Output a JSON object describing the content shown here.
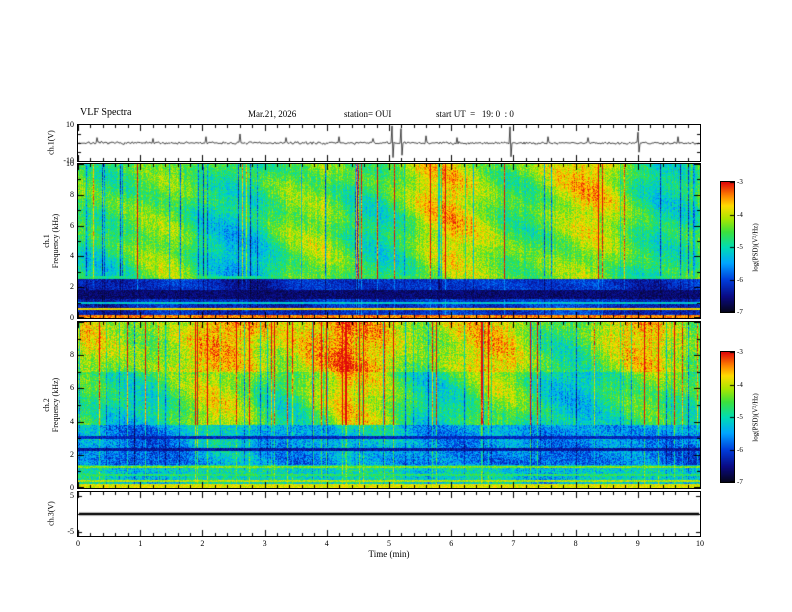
{
  "header": {
    "title": "VLF Spectra",
    "date": "Mar.21, 2026",
    "station": "station= OUI",
    "start_ut": "start UT  =   19: 0  : 0"
  },
  "axes": {
    "time_label": "Time (min)",
    "time_ticks": [
      0,
      1,
      2,
      3,
      4,
      5,
      6,
      7,
      8,
      9,
      10
    ],
    "time_range_min": [
      0,
      10
    ]
  },
  "colorbar": {
    "label": "log(PSD)(V²/Hz)",
    "ticks": [
      -3,
      -4,
      -5,
      -6,
      -7
    ],
    "range": [
      -7,
      -3
    ],
    "colormap": [
      {
        "t": 0.0,
        "rgb": [
          5,
          5,
          25
        ]
      },
      {
        "t": 0.12,
        "rgb": [
          10,
          10,
          130
        ]
      },
      {
        "t": 0.25,
        "rgb": [
          0,
          60,
          220
        ]
      },
      {
        "t": 0.38,
        "rgb": [
          0,
          165,
          255
        ]
      },
      {
        "t": 0.5,
        "rgb": [
          0,
          220,
          180
        ]
      },
      {
        "t": 0.62,
        "rgb": [
          60,
          225,
          60
        ]
      },
      {
        "t": 0.72,
        "rgb": [
          170,
          230,
          0
        ]
      },
      {
        "t": 0.82,
        "rgb": [
          255,
          220,
          0
        ]
      },
      {
        "t": 0.9,
        "rgb": [
          255,
          130,
          0
        ]
      },
      {
        "t": 1.0,
        "rgb": [
          225,
          10,
          10
        ]
      }
    ]
  },
  "chart_data": [
    {
      "type": "line",
      "name": "ch1-waveform",
      "ylabel": "ch.1(V)",
      "ylim": [
        -10,
        10
      ],
      "yticks": [
        10,
        -10
      ],
      "description": "Broadband noise of roughly ±1 V around 0 V with many impulsive spikes over the 10-minute record",
      "seed": 7,
      "noise_amplitude_v": 0.7,
      "spikes": {
        "times_min": [
          0.3,
          1.2,
          2.05,
          2.6,
          3.35,
          4.2,
          4.75,
          5.05,
          5.2,
          5.6,
          6.1,
          6.95,
          7.55,
          8.2,
          9.0,
          9.65
        ],
        "amplitudes_v": [
          3,
          2.5,
          3.5,
          5,
          3,
          3.5,
          2.5,
          9.5,
          8,
          4,
          3,
          9,
          3.5,
          3,
          6,
          3.5
        ]
      },
      "line_color": "#000000"
    },
    {
      "type": "heatmap",
      "name": "ch1-spectrogram",
      "ylabel": "ch.1\nFrequency (kHz)",
      "ylim_khz": [
        0,
        10
      ],
      "yticks": [
        10,
        8,
        6,
        4,
        2,
        0
      ],
      "value_range": [
        -7,
        -3
      ],
      "description": "Green/yellow broadband hiss 2.5-10 kHz with red vertical sferic streaks; dark blue band below 2.5 kHz with bright red lines near 0.1 and 0.6 kHz",
      "seed": 42,
      "bands": [
        {
          "f_lo": 2.55,
          "f_hi": 10,
          "base": -4.6,
          "tilt": 0.25,
          "streak_w": 1.0,
          "noise": 0.38,
          "blob": 1.0
        },
        {
          "f_lo": 0,
          "f_hi": 2.55,
          "base": -6.15,
          "tilt": 0,
          "streak_w": 0.3,
          "noise": 0.3,
          "blob": 0.5
        }
      ],
      "lines": [
        {
          "f": 2.62,
          "hw": 0.08,
          "v": -4.9,
          "mode": "bright"
        },
        {
          "f": 1.55,
          "hw": 0.3,
          "v": -6.6,
          "mode": "dark"
        },
        {
          "f": 0.95,
          "hw": 0.07,
          "v": -5.2,
          "mode": "bright"
        },
        {
          "f": 0.6,
          "hw": 0.08,
          "v": -3.8,
          "mode": "bright"
        },
        {
          "f": 0.1,
          "hw": 0.12,
          "v": -3.4,
          "mode": "bright"
        }
      ],
      "streaks": {
        "pos_prob": 0.05,
        "pos_boost": 1.5,
        "neg_prob": 0.07,
        "neg_boost": 1.1
      }
    },
    {
      "type": "heatmap",
      "name": "ch2-spectrogram",
      "ylabel": "ch.2\nFrequency (kHz)",
      "ylim_khz": [
        0,
        10
      ],
      "yticks": [
        8,
        6,
        4,
        2,
        0
      ],
      "value_range": [
        -7,
        -3
      ],
      "description": "Orange/red intensity above 7 kHz, green hiss 4-7 kHz, blue 1.5-4 kHz with dark horizontal bands, bright narrow lines below 1.5 kHz; red vertical sferic streaks throughout",
      "seed": 99,
      "bands": [
        {
          "f_lo": 7,
          "f_hi": 10,
          "base": -4.05,
          "tilt": 0.15,
          "streak_w": 1.0,
          "noise": 0.45,
          "blob": 0.8
        },
        {
          "f_lo": 3.8,
          "f_hi": 7,
          "base": -4.65,
          "tilt": 0.2,
          "streak_w": 1.0,
          "noise": 0.4,
          "blob": 1.0
        },
        {
          "f_lo": 1.4,
          "f_hi": 3.8,
          "base": -5.65,
          "tilt": 0.3,
          "streak_w": 0.5,
          "noise": 0.45,
          "blob": 0.8
        },
        {
          "f_lo": 0,
          "f_hi": 1.4,
          "base": -5.1,
          "tilt": 0,
          "streak_w": 0.4,
          "noise": 0.5,
          "blob": 0.5
        }
      ],
      "lines": [
        {
          "f": 3.05,
          "hw": 0.09,
          "v": -6.2,
          "mode": "dark"
        },
        {
          "f": 2.3,
          "hw": 0.09,
          "v": -6.4,
          "mode": "dark"
        },
        {
          "f": 1.25,
          "hw": 0.07,
          "v": -4.3,
          "mode": "bright"
        },
        {
          "f": 0.8,
          "hw": 0.07,
          "v": -4.7,
          "mode": "bright"
        },
        {
          "f": 0.45,
          "hw": 0.06,
          "v": -4.1,
          "mode": "bright"
        },
        {
          "f": 0.12,
          "hw": 0.1,
          "v": -3.9,
          "mode": "bright"
        }
      ],
      "streaks": {
        "pos_prob": 0.07,
        "pos_boost": 1.4,
        "neg_prob": 0.06,
        "neg_boost": 1.0
      }
    },
    {
      "type": "line",
      "name": "ch3-waveform",
      "ylabel": "ch.3(V)",
      "ylim": [
        -5,
        5
      ],
      "yticks": [
        5,
        -5
      ],
      "description": "Flat trace at 0 V for the whole record",
      "value_v": 0,
      "line_width": 2.5,
      "line_color": "#000000"
    }
  ],
  "background_color": "#ffffff"
}
